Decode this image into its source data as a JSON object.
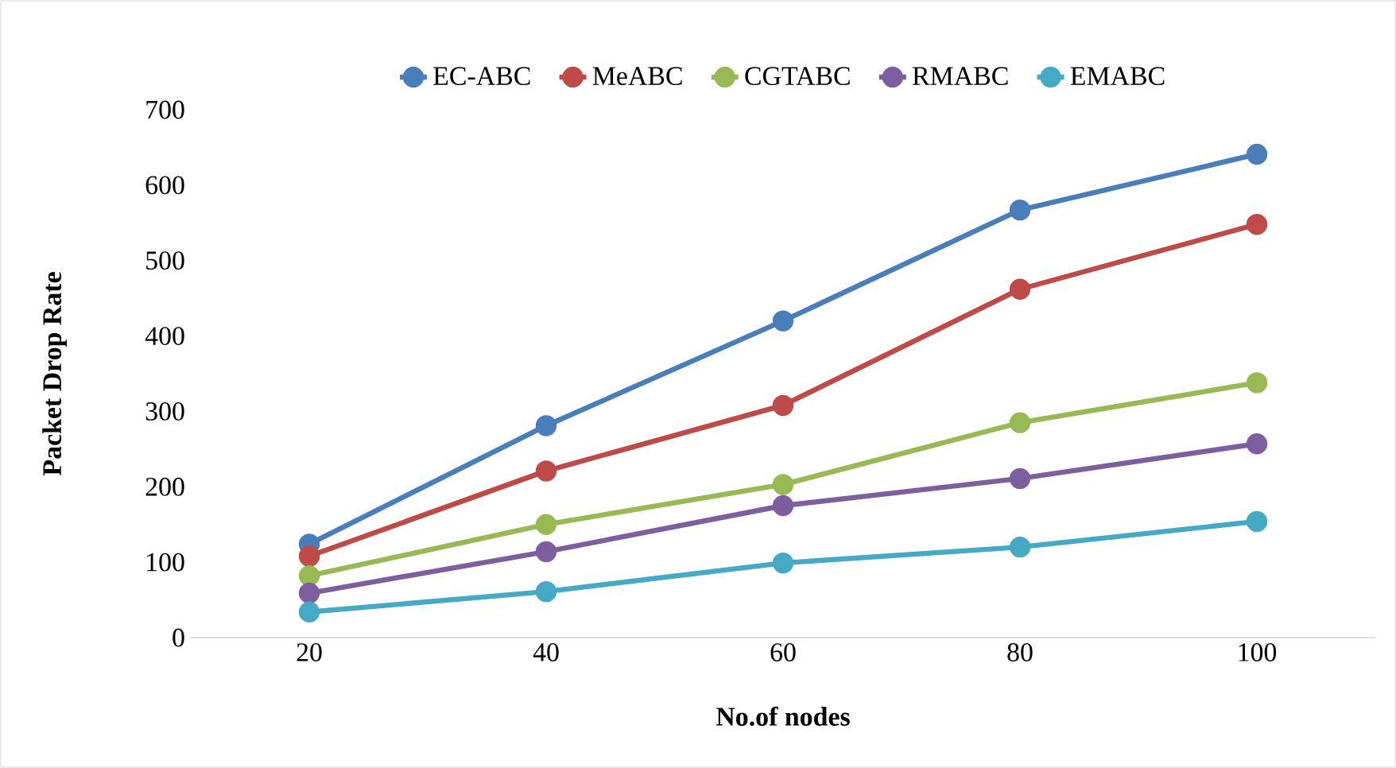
{
  "chart_data": {
    "type": "line",
    "xlabel": "No.of nodes",
    "ylabel": "Packet Drop Rate",
    "categories": [
      "20",
      "40",
      "60",
      "80",
      "100"
    ],
    "ylim": [
      0,
      700
    ],
    "yticks": [
      0,
      100,
      200,
      300,
      400,
      500,
      600,
      700
    ],
    "grid": false,
    "legend": "top",
    "marker": "circle",
    "line_style": "solid",
    "series": [
      {
        "name": "EC-ABC",
        "color": "#4a7ebb",
        "values": [
          124,
          281,
          420,
          567,
          641
        ]
      },
      {
        "name": "MeABC",
        "color": "#be4b48",
        "values": [
          108,
          221,
          308,
          462,
          548
        ]
      },
      {
        "name": "CGTABC",
        "color": "#98b954",
        "values": [
          82,
          150,
          203,
          285,
          338
        ]
      },
      {
        "name": "RMABC",
        "color": "#7d5fa0",
        "values": [
          59,
          114,
          175,
          211,
          257
        ]
      },
      {
        "name": "EMABC",
        "color": "#46aac5",
        "values": [
          34,
          61,
          99,
          120,
          154
        ]
      }
    ]
  }
}
